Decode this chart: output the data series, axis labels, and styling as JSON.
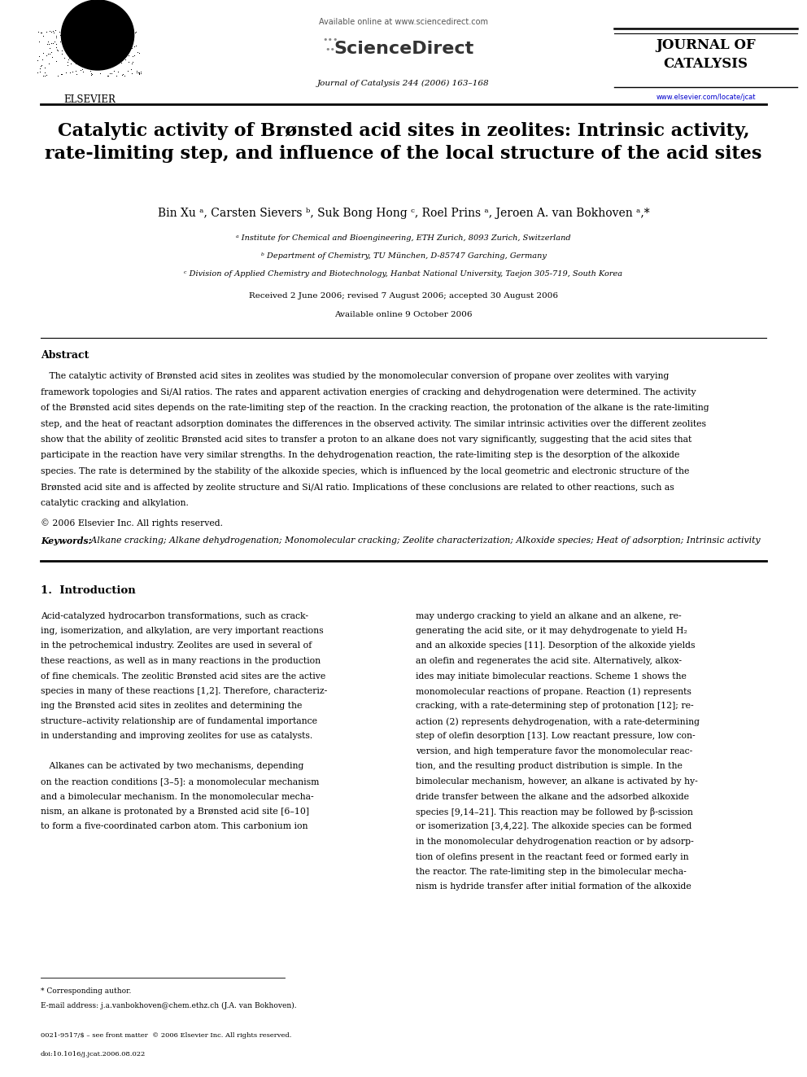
{
  "background_color": "#ffffff",
  "page_width": 9.92,
  "page_height": 13.23,
  "header": {
    "available_online_text": "Available online at www.sciencedirect.com",
    "sciencedirect_text": "● ScienceDirect",
    "journal_name_text": "Journal of Catalysis 244 (2006) 163–168",
    "journal_of_catalysis": "JOURNAL OF\nCATALYSIS",
    "website": "www.elsevier.com/locate/jcat",
    "elsevier_text": "ELSEVIER"
  },
  "title": "Catalytic activity of Brønsted acid sites in zeolites: Intrinsic activity,\nrate-limiting step, and influence of the local structure of the acid sites",
  "authors": "Bin Xu ᵃ, Carsten Sievers ᵇ, Suk Bong Hong ᶜ, Roel Prins ᵃ, Jeroen A. van Bokhoven ᵃ,*",
  "affiliations": [
    "ᵃ Institute for Chemical and Bioengineering, ETH Zurich, 8093 Zurich, Switzerland",
    "ᵇ Department of Chemistry, TU München, D-85747 Garching, Germany",
    "ᶜ Division of Applied Chemistry and Biotechnology, Hanbat National University, Taejon 305-719, South Korea"
  ],
  "received_text": "Received 2 June 2006; revised 7 August 2006; accepted 30 August 2006",
  "available_online": "Available online 9 October 2006",
  "abstract_title": "Abstract",
  "copyright": "© 2006 Elsevier Inc. All rights reserved.",
  "keywords_label": "Keywords:",
  "keywords_text": " Alkane cracking; Alkane dehydrogenation; Monomolecular cracking; Zeolite characterization; Alkoxide species; Heat of adsorption; Intrinsic activity",
  "section1_title": "1.  Introduction",
  "abstract_lines": [
    "   The catalytic activity of Brønsted acid sites in zeolites was studied by the monomolecular conversion of propane over zeolites with varying",
    "framework topologies and Si/Al ratios. The rates and apparent activation energies of cracking and dehydrogenation were determined. The activity",
    "of the Brønsted acid sites depends on the rate-limiting step of the reaction. In the cracking reaction, the protonation of the alkane is the rate-limiting",
    "step, and the heat of reactant adsorption dominates the differences in the observed activity. The similar intrinsic activities over the different zeolites",
    "show that the ability of zeolitic Brønsted acid sites to transfer a proton to an alkane does not vary significantly, suggesting that the acid sites that",
    "participate in the reaction have very similar strengths. In the dehydrogenation reaction, the rate-limiting step is the desorption of the alkoxide",
    "species. The rate is determined by the stability of the alkoxide species, which is influenced by the local geometric and electronic structure of the",
    "Brønsted acid site and is affected by zeolite structure and Si/Al ratio. Implications of these conclusions are related to other reactions, such as",
    "catalytic cracking and alkylation."
  ],
  "col1_lines": [
    "Acid-catalyzed hydrocarbon transformations, such as crack-",
    "ing, isomerization, and alkylation, are very important reactions",
    "in the petrochemical industry. Zeolites are used in several of",
    "these reactions, as well as in many reactions in the production",
    "of fine chemicals. The zeolitic Brønsted acid sites are the active",
    "species in many of these reactions [1,2]. Therefore, characteriz-",
    "ing the Brønsted acid sites in zeolites and determining the",
    "structure–activity relationship are of fundamental importance",
    "in understanding and improving zeolites for use as catalysts.",
    "",
    "   Alkanes can be activated by two mechanisms, depending",
    "on the reaction conditions [3–5]: a monomolecular mechanism",
    "and a bimolecular mechanism. In the monomolecular mecha-",
    "nism, an alkane is protonated by a Brønsted acid site [6–10]",
    "to form a five-coordinated carbon atom. This carbonium ion"
  ],
  "col2_lines": [
    "may undergo cracking to yield an alkane and an alkene, re-",
    "generating the acid site, or it may dehydrogenate to yield H₂",
    "and an alkoxide species [11]. Desorption of the alkoxide yields",
    "an olefin and regenerates the acid site. Alternatively, alkox-",
    "ides may initiate bimolecular reactions. Scheme 1 shows the",
    "monomolecular reactions of propane. Reaction (1) represents",
    "cracking, with a rate-determining step of protonation [12]; re-",
    "action (2) represents dehydrogenation, with a rate-determining",
    "step of olefin desorption [13]. Low reactant pressure, low con-",
    "version, and high temperature favor the monomolecular reac-",
    "tion, and the resulting product distribution is simple. In the",
    "bimolecular mechanism, however, an alkane is activated by hy-",
    "dride transfer between the alkane and the adsorbed alkoxide",
    "species [9,14–21]. This reaction may be followed by β-scission",
    "or isomerization [3,4,22]. The alkoxide species can be formed",
    "in the monomolecular dehydrogenation reaction or by adsorp-",
    "tion of olefins present in the reactant feed or formed early in",
    "the reactor. The rate-limiting step in the bimolecular mecha-",
    "nism is hydride transfer after initial formation of the alkoxide"
  ],
  "footnote1": "* Corresponding author.",
  "footnote2": "E-mail address: j.a.vanbokhoven@chem.ethz.ch (J.A. van Bokhoven).",
  "footer1": "0021-9517/$ – see front matter  © 2006 Elsevier Inc. All rights reserved.",
  "footer2": "doi:10.1016/j.jcat.2006.08.022"
}
